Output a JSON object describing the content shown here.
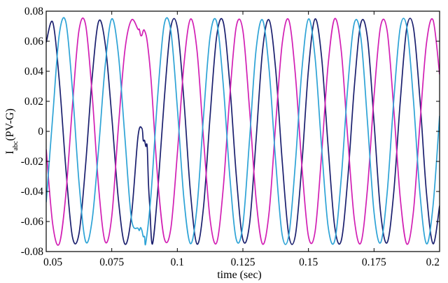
{
  "chart_data": {
    "type": "line",
    "title": "",
    "xlabel": "time (sec)",
    "ylabel": {
      "main": "I",
      "subscript": "abc",
      "suffix": "(PV-G)"
    },
    "xlim": [
      0.05,
      0.2
    ],
    "ylim": [
      -0.08,
      0.08
    ],
    "x_ticks": [
      {
        "value": 0.05,
        "label": "0.05"
      },
      {
        "value": 0.075,
        "label": "0.075"
      },
      {
        "value": 0.1,
        "label": "0.1"
      },
      {
        "value": 0.125,
        "label": "0.125"
      },
      {
        "value": 0.15,
        "label": "0.15"
      },
      {
        "value": 0.175,
        "label": "0.175"
      },
      {
        "value": 0.2,
        "label": "0.2"
      }
    ],
    "y_ticks": [
      {
        "value": 0.08,
        "label": "0.08"
      },
      {
        "value": 0.06,
        "label": "0.06"
      },
      {
        "value": 0.04,
        "label": "0.04"
      },
      {
        "value": 0.02,
        "label": "0.02"
      },
      {
        "value": 0,
        "label": "0"
      },
      {
        "value": -0.02,
        "label": "-0.02"
      },
      {
        "value": -0.04,
        "label": "-0.04"
      },
      {
        "value": -0.06,
        "label": "-0.06"
      },
      {
        "value": -0.08,
        "label": "-0.08"
      }
    ],
    "grid": false,
    "series": [
      {
        "color": "#1a1f6e",
        "x": [
          0.05,
          0.0525,
          0.055,
          0.0575,
          0.06,
          0.0625,
          0.065,
          0.0675,
          0.07,
          0.0725,
          0.075,
          0.0775,
          0.08,
          0.0825,
          0.085,
          0.0865,
          0.087,
          0.0875,
          0.088,
          0.0885,
          0.089,
          0.0895,
          0.0905,
          0.0925,
          0.095,
          0.0975,
          0.1,
          0.1025,
          0.105,
          0.1075,
          0.11,
          0.1125,
          0.115,
          0.1175,
          0.12,
          0.1225,
          0.125,
          0.1275,
          0.13,
          0.1325,
          0.135,
          0.1375,
          0.14,
          0.1425,
          0.145,
          0.1475,
          0.15,
          0.1525,
          0.155,
          0.1575,
          0.16,
          0.1625,
          0.165,
          0.1675,
          0.17,
          0.1725,
          0.175,
          0.1775,
          0.18,
          0.1825,
          0.185,
          0.1875,
          0.19,
          0.1925,
          0.195,
          0.1975,
          0.2
        ],
        "y": [
          0.0592,
          0.0726,
          0.0336,
          -0.0249,
          -0.0702,
          -0.0681,
          -0.0229,
          0.0353,
          0.0732,
          0.0582,
          0.0099,
          -0.0449,
          -0.075,
          -0.0559,
          -0.0035,
          0.002,
          -0.006,
          -0.006,
          -0.01,
          -0.01,
          -0.035,
          -0.05,
          -0.075,
          -0.0406,
          0.0209,
          0.0691,
          0.0691,
          0.0209,
          -0.0406,
          -0.075,
          -0.0501,
          0.0104,
          0.0633,
          0.0728,
          0.0313,
          -0.0299,
          -0.0721,
          -0.0621,
          -0.0063,
          0.0539,
          0.0741,
          0.0411,
          -0.0201,
          -0.0691,
          -0.0693,
          -0.0215,
          0.0411,
          0.0748,
          0.0495,
          -0.0103,
          -0.0634,
          -0.0727,
          -0.0312,
          0.03,
          0.0722,
          0.0621,
          0.0062,
          -0.0539,
          -0.0741,
          -0.041,
          0.02,
          0.0691,
          0.0693,
          0.0214,
          -0.0411,
          -0.0748,
          -0.0495
        ]
      },
      {
        "color": "#d21fb4",
        "x": [
          0.05,
          0.0525,
          0.055,
          0.0575,
          0.06,
          0.0625,
          0.065,
          0.0675,
          0.07,
          0.0725,
          0.075,
          0.0775,
          0.08,
          0.0825,
          0.085,
          0.0855,
          0.086,
          0.0865,
          0.087,
          0.0875,
          0.0885,
          0.09,
          0.0925,
          0.095,
          0.0975,
          0.1,
          0.1025,
          0.105,
          0.1075,
          0.11,
          0.1125,
          0.115,
          0.1175,
          0.12,
          0.1225,
          0.125,
          0.1275,
          0.13,
          0.1325,
          0.135,
          0.1375,
          0.14,
          0.1425,
          0.145,
          0.1475,
          0.15,
          0.1525,
          0.155,
          0.1575,
          0.16,
          0.1625,
          0.165,
          0.1675,
          0.17,
          0.1725,
          0.175,
          0.1775,
          0.18,
          0.1825,
          0.185,
          0.1875,
          0.19,
          0.1925,
          0.195,
          0.1975,
          0.2
        ],
        "y": [
          -0.012,
          -0.062,
          -0.0748,
          -0.0418,
          0.0169,
          0.0672,
          0.0712,
          0.0251,
          -0.0373,
          -0.0735,
          -0.0566,
          0.0021,
          0.0539,
          0.0741,
          0.068,
          0.068,
          0.064,
          0.064,
          0.067,
          0.067,
          0.06,
          0.0339,
          -0.0311,
          -0.0711,
          -0.0649,
          -0.0149,
          0.0441,
          0.0747,
          0.0538,
          -0.0051,
          -0.0587,
          -0.0741,
          -0.0379,
          0.0234,
          0.07,
          0.067,
          0.0154,
          -0.0445,
          -0.075,
          -0.0537,
          0.005,
          0.0587,
          0.0741,
          0.0379,
          -0.0233,
          -0.0699,
          -0.067,
          -0.0155,
          0.0445,
          0.075,
          0.0537,
          -0.005,
          -0.0587,
          -0.0741,
          -0.0379,
          0.0233,
          0.0699,
          0.067,
          0.0155,
          -0.0444,
          -0.075,
          -0.0537,
          0.005,
          0.0587,
          0.0741,
          0.0379
        ]
      },
      {
        "color": "#2da3d6",
        "x": [
          0.05,
          0.0525,
          0.055,
          0.0575,
          0.06,
          0.0625,
          0.065,
          0.0675,
          0.07,
          0.0725,
          0.075,
          0.0775,
          0.08,
          0.0825,
          0.085,
          0.0855,
          0.086,
          0.0865,
          0.087,
          0.0875,
          0.088,
          0.09,
          0.0925,
          0.095,
          0.0975,
          0.1,
          0.1025,
          0.105,
          0.1075,
          0.11,
          0.1125,
          0.115,
          0.1175,
          0.12,
          0.1225,
          0.125,
          0.1275,
          0.13,
          0.1325,
          0.135,
          0.1375,
          0.14,
          0.1425,
          0.145,
          0.1475,
          0.15,
          0.1525,
          0.155,
          0.1575,
          0.16,
          0.1625,
          0.165,
          0.1675,
          0.17,
          0.1725,
          0.175,
          0.1775,
          0.18,
          0.1825,
          0.185,
          0.1875,
          0.19,
          0.1925,
          0.195,
          0.1975,
          0.2
        ],
        "y": [
          -0.0472,
          0.0103,
          0.0647,
          0.0727,
          0.0277,
          -0.0338,
          -0.0731,
          -0.0592,
          -0.0112,
          0.0439,
          0.0749,
          0.0517,
          -0.0038,
          -0.0582,
          -0.0645,
          -0.066,
          -0.064,
          -0.066,
          -0.07,
          -0.07,
          -0.074,
          -0.0413,
          0.0232,
          0.0712,
          0.0672,
          0.0158,
          -0.0447,
          -0.0747,
          -0.0504,
          0.0104,
          0.0633,
          0.0728,
          0.0313,
          -0.0299,
          -0.0721,
          -0.0621,
          -0.0062,
          0.0539,
          0.0741,
          0.041,
          -0.02,
          -0.0691,
          -0.0693,
          -0.0214,
          0.0411,
          0.0748,
          0.0495,
          -0.0103,
          -0.0634,
          -0.0728,
          -0.0312,
          0.03,
          0.0722,
          0.0621,
          0.0062,
          -0.0539,
          -0.0741,
          -0.041,
          0.02,
          0.0691,
          0.0693,
          0.0214,
          -0.0411,
          -0.0748,
          -0.0495,
          0.0103
        ]
      }
    ]
  }
}
